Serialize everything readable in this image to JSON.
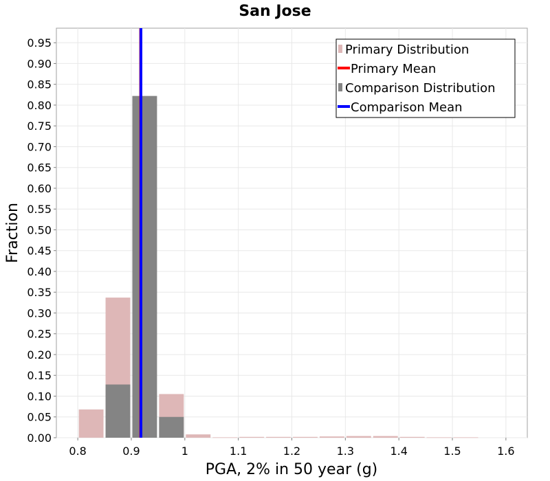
{
  "chart_data": {
    "type": "bar",
    "title": "San Jose",
    "xlabel": "PGA, 2% in 50 year (g)",
    "ylabel": "Fraction",
    "xlim": [
      0.76,
      1.64
    ],
    "ylim": [
      0,
      0.985
    ],
    "bin_width": 0.05,
    "xticks": [
      0.8,
      0.9,
      1,
      1.1,
      1.2,
      1.3,
      1.4,
      1.5,
      1.6
    ],
    "xtick_labels": [
      "0.8",
      "0.9",
      "1",
      "1.1",
      "1.2",
      "1.3",
      "1.4",
      "1.5",
      "1.6"
    ],
    "yticks": [
      0,
      0.05,
      0.1,
      0.15,
      0.2,
      0.25,
      0.3,
      0.35,
      0.4,
      0.45,
      0.5,
      0.55,
      0.6,
      0.65,
      0.7,
      0.75,
      0.8,
      0.85,
      0.9,
      0.95
    ],
    "ytick_labels": [
      "0.00",
      "0.05",
      "0.10",
      "0.15",
      "0.20",
      "0.25",
      "0.30",
      "0.35",
      "0.40",
      "0.45",
      "0.50",
      "0.55",
      "0.60",
      "0.65",
      "0.70",
      "0.75",
      "0.80",
      "0.85",
      "0.90",
      "0.95"
    ],
    "grid": true,
    "legend_position": "top-right",
    "x": [
      0.825,
      0.875,
      0.925,
      0.975,
      1.025,
      1.075,
      1.125,
      1.175,
      1.225,
      1.275,
      1.325,
      1.375,
      1.425,
      1.475,
      1.525,
      1.575,
      1.625
    ],
    "series": [
      {
        "name": "Primary Distribution",
        "kind": "histogram",
        "color": "#deb7b7",
        "values": [
          0.068,
          0.337,
          0.0,
          0.105,
          0.008,
          0.001,
          0.002,
          0.002,
          0.002,
          0.003,
          0.004,
          0.004,
          0.002,
          0.001,
          0.001,
          0.0,
          0.0
        ]
      },
      {
        "name": "Comparison Distribution",
        "kind": "histogram",
        "color": "#848484",
        "values": [
          0.0,
          0.128,
          0.822,
          0.05,
          0.0,
          0.0,
          0.0,
          0.0,
          0.0,
          0.0,
          0.0,
          0.0,
          0.0,
          0.0,
          0.0,
          0.0,
          0.0
        ]
      }
    ],
    "mean_lines": [
      {
        "name": "Primary Mean",
        "color": "#ff0000",
        "x": 0.9175
      },
      {
        "name": "Comparison Mean",
        "color": "#0000ff",
        "x": 0.918
      }
    ],
    "legend": [
      {
        "label": "Primary Distribution",
        "kind": "box",
        "color": "#deb7b7"
      },
      {
        "label": "Primary Mean",
        "kind": "line",
        "color": "#ff0000"
      },
      {
        "label": "Comparison Distribution",
        "kind": "box",
        "color": "#848484"
      },
      {
        "label": "Comparison Mean",
        "kind": "line",
        "color": "#0000ff"
      }
    ]
  }
}
